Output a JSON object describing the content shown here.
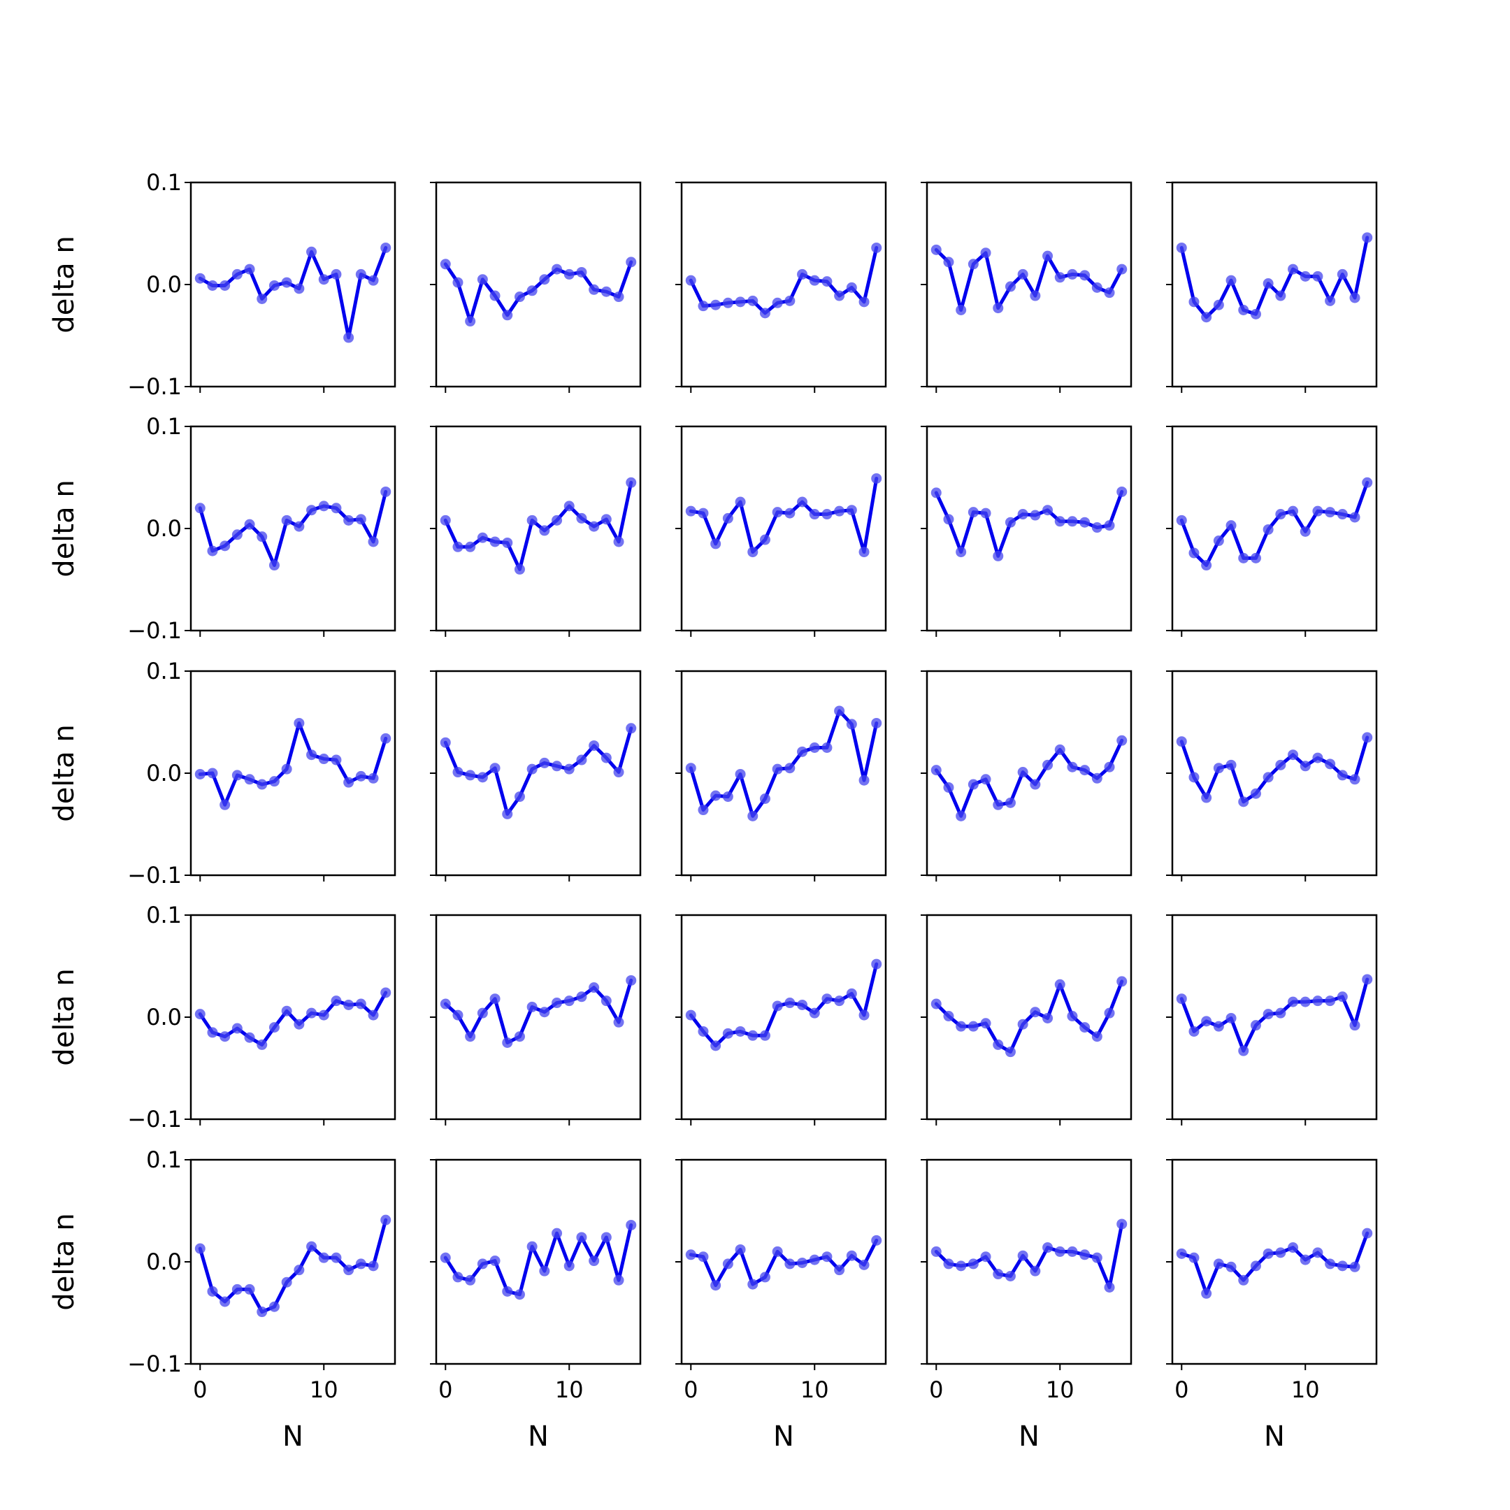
{
  "colors": {
    "line": "#0000ee",
    "marker": "#4444ee",
    "axes": "#000000",
    "background": "#ffffff"
  },
  "chart_data": {
    "type": "line",
    "layout": {
      "rows": 5,
      "cols": 5,
      "sharex": true,
      "sharey": true
    },
    "xlabel": "N",
    "ylabel": "delta n",
    "ylim": [
      -0.1,
      0.1
    ],
    "xlim": [
      -0.75,
      15.75
    ],
    "yticks": [
      -0.1,
      0.0,
      0.1
    ],
    "ytick_labels": [
      "−0.1",
      "0.0",
      "0.1"
    ],
    "xticks": [
      0,
      10
    ],
    "xtick_labels": [
      "0",
      "10"
    ],
    "grid": false,
    "legend": "none",
    "x": [
      0,
      1,
      2,
      3,
      4,
      5,
      6,
      7,
      8,
      9,
      10,
      11,
      12,
      13,
      14,
      15
    ],
    "panels": [
      [
        0.006,
        -0.001,
        -0.001,
        0.01,
        0.015,
        -0.014,
        -0.001,
        0.002,
        -0.004,
        0.032,
        0.005,
        0.01,
        -0.052,
        0.01,
        0.004,
        0.036
      ],
      [
        0.02,
        0.002,
        -0.036,
        0.005,
        -0.011,
        -0.03,
        -0.012,
        -0.006,
        0.005,
        0.015,
        0.01,
        0.012,
        -0.005,
        -0.007,
        -0.012,
        0.022
      ],
      [
        0.004,
        -0.021,
        -0.02,
        -0.018,
        -0.017,
        -0.016,
        -0.028,
        -0.018,
        -0.016,
        0.01,
        0.004,
        0.003,
        -0.011,
        -0.003,
        -0.017,
        0.036
      ],
      [
        0.034,
        0.022,
        -0.025,
        0.02,
        0.031,
        -0.023,
        -0.002,
        0.01,
        -0.011,
        0.028,
        0.007,
        0.01,
        0.009,
        -0.003,
        -0.008,
        0.015
      ],
      [
        0.036,
        -0.017,
        -0.032,
        -0.02,
        0.004,
        -0.025,
        -0.029,
        0.001,
        -0.011,
        0.015,
        0.008,
        0.008,
        -0.016,
        0.01,
        -0.013,
        0.046
      ],
      [
        0.02,
        -0.022,
        -0.017,
        -0.006,
        0.004,
        -0.008,
        -0.036,
        0.008,
        0.002,
        0.018,
        0.022,
        0.02,
        0.008,
        0.009,
        -0.013,
        0.036
      ],
      [
        0.008,
        -0.018,
        -0.018,
        -0.009,
        -0.013,
        -0.014,
        -0.04,
        0.008,
        -0.002,
        0.008,
        0.022,
        0.01,
        0.002,
        0.009,
        -0.013,
        0.045
      ],
      [
        0.017,
        0.015,
        -0.015,
        0.01,
        0.026,
        -0.023,
        -0.011,
        0.016,
        0.015,
        0.026,
        0.014,
        0.014,
        0.017,
        0.018,
        -0.023,
        0.049
      ],
      [
        0.035,
        0.009,
        -0.023,
        0.016,
        0.015,
        -0.027,
        0.006,
        0.014,
        0.013,
        0.018,
        0.007,
        0.007,
        0.006,
        0.001,
        0.003,
        0.036
      ],
      [
        0.008,
        -0.024,
        -0.036,
        -0.012,
        0.003,
        -0.029,
        -0.029,
        -0.001,
        0.014,
        0.017,
        -0.003,
        0.017,
        0.016,
        0.014,
        0.011,
        0.045
      ],
      [
        -0.001,
        0.0,
        -0.031,
        -0.002,
        -0.006,
        -0.011,
        -0.008,
        0.004,
        0.049,
        0.018,
        0.014,
        0.013,
        -0.009,
        -0.003,
        -0.005,
        0.034
      ],
      [
        0.03,
        0.001,
        -0.002,
        -0.004,
        0.005,
        -0.04,
        -0.023,
        0.004,
        0.01,
        0.007,
        0.004,
        0.013,
        0.027,
        0.015,
        0.001,
        0.044
      ],
      [
        0.005,
        -0.036,
        -0.022,
        -0.023,
        -0.001,
        -0.042,
        -0.025,
        0.004,
        0.005,
        0.021,
        0.025,
        0.025,
        0.061,
        0.048,
        -0.007,
        0.049
      ],
      [
        0.003,
        -0.014,
        -0.042,
        -0.011,
        -0.006,
        -0.031,
        -0.029,
        0.001,
        -0.011,
        0.008,
        0.023,
        0.006,
        0.003,
        -0.005,
        0.006,
        0.032
      ],
      [
        0.031,
        -0.004,
        -0.024,
        0.005,
        0.008,
        -0.028,
        -0.02,
        -0.004,
        0.008,
        0.018,
        0.007,
        0.015,
        0.009,
        -0.002,
        -0.006,
        0.035
      ],
      [
        0.003,
        -0.015,
        -0.019,
        -0.011,
        -0.02,
        -0.027,
        -0.01,
        0.006,
        -0.007,
        0.004,
        0.002,
        0.016,
        0.012,
        0.013,
        0.002,
        0.024
      ],
      [
        0.013,
        0.002,
        -0.019,
        0.004,
        0.018,
        -0.025,
        -0.019,
        0.01,
        0.005,
        0.014,
        0.016,
        0.02,
        0.029,
        0.016,
        -0.005,
        0.036
      ],
      [
        0.002,
        -0.014,
        -0.028,
        -0.016,
        -0.014,
        -0.018,
        -0.018,
        0.011,
        0.014,
        0.012,
        0.004,
        0.018,
        0.016,
        0.023,
        0.002,
        0.052
      ],
      [
        0.013,
        0.001,
        -0.009,
        -0.009,
        -0.006,
        -0.027,
        -0.034,
        -0.007,
        0.005,
        -0.001,
        0.032,
        0.001,
        -0.01,
        -0.019,
        0.004,
        0.035
      ],
      [
        0.018,
        -0.014,
        -0.004,
        -0.009,
        -0.001,
        -0.033,
        -0.008,
        0.003,
        0.004,
        0.015,
        0.015,
        0.016,
        0.016,
        0.02,
        -0.008,
        0.037
      ],
      [
        0.013,
        -0.029,
        -0.039,
        -0.027,
        -0.027,
        -0.049,
        -0.044,
        -0.02,
        -0.008,
        0.015,
        0.004,
        0.004,
        -0.008,
        -0.002,
        -0.004,
        0.041
      ],
      [
        0.004,
        -0.015,
        -0.018,
        -0.002,
        0.001,
        -0.029,
        -0.032,
        0.015,
        -0.009,
        0.028,
        -0.004,
        0.024,
        0.001,
        0.024,
        -0.018,
        0.036
      ],
      [
        0.007,
        0.005,
        -0.023,
        -0.002,
        0.012,
        -0.022,
        -0.015,
        0.01,
        -0.002,
        -0.001,
        0.002,
        0.005,
        -0.008,
        0.006,
        -0.003,
        0.021
      ],
      [
        0.01,
        -0.002,
        -0.004,
        -0.002,
        0.005,
        -0.012,
        -0.014,
        0.006,
        -0.009,
        0.014,
        0.01,
        0.01,
        0.007,
        0.004,
        -0.025,
        0.037
      ],
      [
        0.008,
        0.004,
        -0.031,
        -0.002,
        -0.005,
        -0.018,
        -0.004,
        0.008,
        0.009,
        0.014,
        0.002,
        0.009,
        -0.002,
        -0.004,
        -0.005,
        0.028
      ]
    ]
  }
}
